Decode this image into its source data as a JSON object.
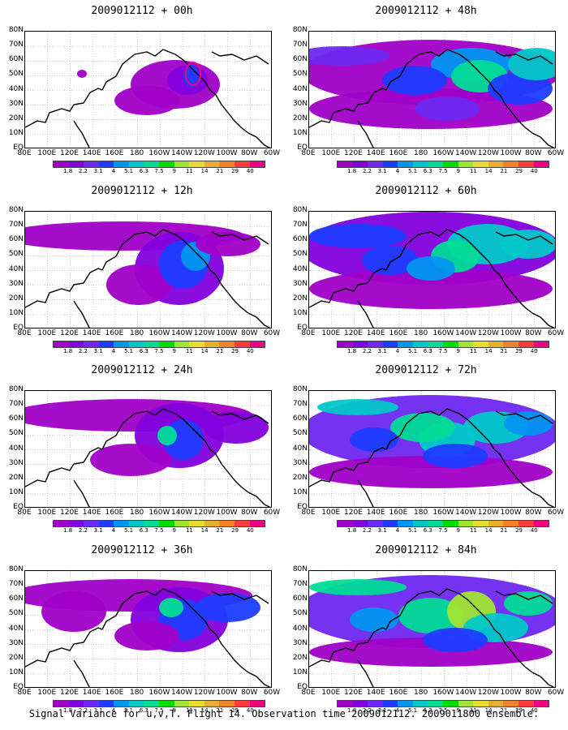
{
  "panels": [
    {
      "title": "2009012112 + 00h"
    },
    {
      "title": "2009012112 + 48h"
    },
    {
      "title": "2009012112 + 12h"
    },
    {
      "title": "2009012112 + 60h"
    },
    {
      "title": "2009012112 + 24h"
    },
    {
      "title": "2009012112 + 72h"
    },
    {
      "title": "2009012112 + 36h"
    },
    {
      "title": "2009012112 + 84h"
    }
  ],
  "lat_labels": [
    "80N",
    "70N",
    "60N",
    "50N",
    "40N",
    "30N",
    "20N",
    "10N",
    "EQ"
  ],
  "lon_labels": [
    "80E",
    "100E",
    "120E",
    "140E",
    "160E",
    "180",
    "160W",
    "140W",
    "120W",
    "100W",
    "80W",
    "60W"
  ],
  "colorbar": {
    "labels": [
      "1.8",
      "2.2",
      "3.1",
      "4",
      "5.1",
      "6.3",
      "7.5",
      "9",
      "11",
      "14",
      "21",
      "29",
      "40"
    ],
    "colors": [
      "#a000c8",
      "#8200dc",
      "#6e28f0",
      "#1e3cff",
      "#0096f0",
      "#00c8c8",
      "#00dc96",
      "#00dc00",
      "#a0e632",
      "#e6dc32",
      "#e6af2d",
      "#f08228",
      "#fa3c3c",
      "#f00082"
    ]
  },
  "caption": "Signal Variance for u,v,T. Flight 14. Observation time 2009012112. 2009011800 ensemble."
}
